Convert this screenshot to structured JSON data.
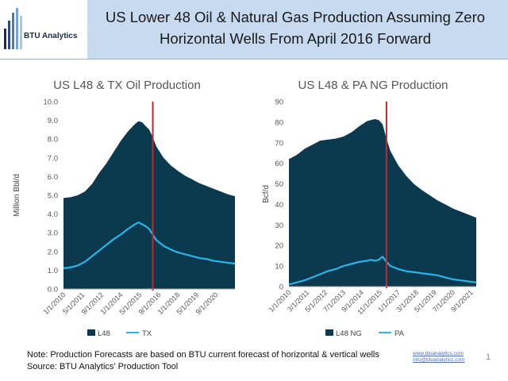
{
  "header": {
    "title_line1": "US Lower 48 Oil & Natural Gas Production Assuming Zero",
    "title_line2": "Horizontal Wells From April 2016 Forward",
    "logo_text": "BTU Analytics",
    "logo_bar_colors": [
      "#1b2c4a",
      "#2c4a7a",
      "#4d7ab3",
      "#7aa3d6",
      "#a9c6ea"
    ]
  },
  "footer": {
    "note_line1": "Note: Production Forecasts are based on BTU current forecast of horizontal & vertical wells",
    "note_line2": "Source: BTU Analytics' Production Tool",
    "link1": "www.btuanalytics.com",
    "link2": "info@btuanalytics.com",
    "page_number": "1"
  },
  "chart_data": [
    {
      "type": "area",
      "title": "US L48 & TX Oil Production",
      "ylabel": "Million Bbl/d",
      "ylim": [
        0,
        10
      ],
      "yticks": [
        "0.0",
        "1.0",
        "2.0",
        "3.0",
        "4.0",
        "5.0",
        "6.0",
        "7.0",
        "8.0",
        "9.0",
        "10.0"
      ],
      "xlim": [
        2010.0,
        2022.0
      ],
      "xticks": [
        {
          "label": "1/1/2010",
          "x": 2010.0
        },
        {
          "label": "5/1/2011",
          "x": 2011.33
        },
        {
          "label": "9/1/2012",
          "x": 2012.67
        },
        {
          "label": "1/1/2014",
          "x": 2014.0
        },
        {
          "label": "5/1/2015",
          "x": 2015.33
        },
        {
          "label": "9/1/2016",
          "x": 2016.67
        },
        {
          "label": "1/1/2018",
          "x": 2018.0
        },
        {
          "label": "5/1/2019",
          "x": 2019.33
        },
        {
          "label": "9/1/2020",
          "x": 2020.67
        }
      ],
      "vline": {
        "x": 2016.25,
        "color": "#c0282d"
      },
      "series": [
        {
          "name": "L48",
          "kind": "area",
          "color": "#0b3a4f",
          "x": [
            2010.0,
            2010.5,
            2011.0,
            2011.5,
            2012.0,
            2012.5,
            2013.0,
            2013.5,
            2014.0,
            2014.5,
            2015.0,
            2015.25,
            2015.5,
            2015.75,
            2016.0,
            2016.25,
            2016.5,
            2017.0,
            2017.5,
            2018.0,
            2018.5,
            2019.0,
            2019.5,
            2020.0,
            2020.5,
            2021.0,
            2021.5,
            2022.0
          ],
          "y": [
            4.85,
            4.9,
            5.0,
            5.2,
            5.6,
            6.2,
            6.7,
            7.3,
            7.9,
            8.4,
            8.8,
            8.95,
            8.9,
            8.7,
            8.5,
            8.1,
            7.6,
            7.0,
            6.6,
            6.3,
            6.05,
            5.85,
            5.65,
            5.5,
            5.35,
            5.2,
            5.05,
            4.95
          ]
        },
        {
          "name": "TX",
          "kind": "line",
          "color": "#2ab4e8",
          "x": [
            2010.0,
            2010.5,
            2011.0,
            2011.5,
            2012.0,
            2012.5,
            2013.0,
            2013.5,
            2014.0,
            2014.5,
            2015.0,
            2015.25,
            2015.5,
            2015.75,
            2016.0,
            2016.25,
            2016.5,
            2017.0,
            2017.5,
            2018.0,
            2018.5,
            2019.0,
            2019.5,
            2020.0,
            2020.5,
            2021.0,
            2021.5,
            2022.0
          ],
          "y": [
            1.1,
            1.15,
            1.25,
            1.45,
            1.75,
            2.05,
            2.35,
            2.65,
            2.9,
            3.2,
            3.45,
            3.55,
            3.45,
            3.35,
            3.2,
            2.9,
            2.6,
            2.3,
            2.1,
            1.95,
            1.85,
            1.75,
            1.65,
            1.6,
            1.5,
            1.45,
            1.4,
            1.35
          ]
        }
      ],
      "legend": {
        "placement": "bottom",
        "items": [
          {
            "name": "L48",
            "color": "#0b3a4f",
            "kind": "area"
          },
          {
            "name": "TX",
            "color": "#2ab4e8",
            "kind": "line"
          }
        ]
      }
    },
    {
      "type": "area",
      "title": "US L48 & PA NG Production",
      "ylabel": "Bcf/d",
      "ylim": [
        0,
        90
      ],
      "yticks": [
        "0",
        "10",
        "20",
        "30",
        "40",
        "50",
        "60",
        "70",
        "80",
        "90"
      ],
      "xlim": [
        2010.0,
        2022.0
      ],
      "xticks": [
        {
          "label": "1/1/2010",
          "x": 2010.0
        },
        {
          "label": "3/1/2011",
          "x": 2011.17
        },
        {
          "label": "5/1/2012",
          "x": 2012.33
        },
        {
          "label": "7/1/2013",
          "x": 2013.5
        },
        {
          "label": "9/1/2014",
          "x": 2014.67
        },
        {
          "label": "11/1/2015",
          "x": 2015.83
        },
        {
          "label": "1/1/2017",
          "x": 2017.0
        },
        {
          "label": "3/1/2018",
          "x": 2018.17
        },
        {
          "label": "5/1/2019",
          "x": 2019.33
        },
        {
          "label": "7/1/2020",
          "x": 2020.5
        },
        {
          "label": "9/1/2021",
          "x": 2021.67
        }
      ],
      "vline": {
        "x": 2016.25,
        "color": "#c0282d"
      },
      "series": [
        {
          "name": "L48 NG",
          "kind": "area",
          "color": "#0b3a4f",
          "x": [
            2010.0,
            2010.5,
            2011.0,
            2011.5,
            2012.0,
            2012.5,
            2013.0,
            2013.5,
            2014.0,
            2014.5,
            2015.0,
            2015.25,
            2015.5,
            2015.75,
            2016.0,
            2016.25,
            2016.5,
            2017.0,
            2017.5,
            2018.0,
            2018.5,
            2019.0,
            2019.5,
            2020.0,
            2020.5,
            2021.0,
            2021.5,
            2022.0
          ],
          "y": [
            62.0,
            64.0,
            67.0,
            69.0,
            71.0,
            71.5,
            72.0,
            73.0,
            75.0,
            78.0,
            80.5,
            81.0,
            81.5,
            81.0,
            79.0,
            72.0,
            66.0,
            59.0,
            54.0,
            50.0,
            47.0,
            44.5,
            42.0,
            40.0,
            38.0,
            36.5,
            35.0,
            33.5
          ]
        },
        {
          "name": "PA",
          "kind": "line",
          "color": "#2ab4e8",
          "x": [
            2010.0,
            2010.5,
            2011.0,
            2011.5,
            2012.0,
            2012.5,
            2013.0,
            2013.5,
            2014.0,
            2014.5,
            2015.0,
            2015.25,
            2015.5,
            2015.75,
            2016.0,
            2016.25,
            2016.5,
            2017.0,
            2017.5,
            2018.0,
            2018.5,
            2019.0,
            2019.5,
            2020.0,
            2020.5,
            2021.0,
            2021.5,
            2022.0
          ],
          "y": [
            1.0,
            2.0,
            3.0,
            4.5,
            6.0,
            7.5,
            8.5,
            10.0,
            11.0,
            12.0,
            12.5,
            13.0,
            12.5,
            13.0,
            14.5,
            12.0,
            10.0,
            8.5,
            7.5,
            7.0,
            6.5,
            6.0,
            5.5,
            4.5,
            3.5,
            3.0,
            2.5,
            2.0
          ]
        }
      ],
      "legend": {
        "placement": "bottom",
        "items": [
          {
            "name": "L48 NG",
            "color": "#0b3a4f",
            "kind": "area"
          },
          {
            "name": "PA",
            "color": "#2ab4e8",
            "kind": "line"
          }
        ]
      }
    }
  ]
}
